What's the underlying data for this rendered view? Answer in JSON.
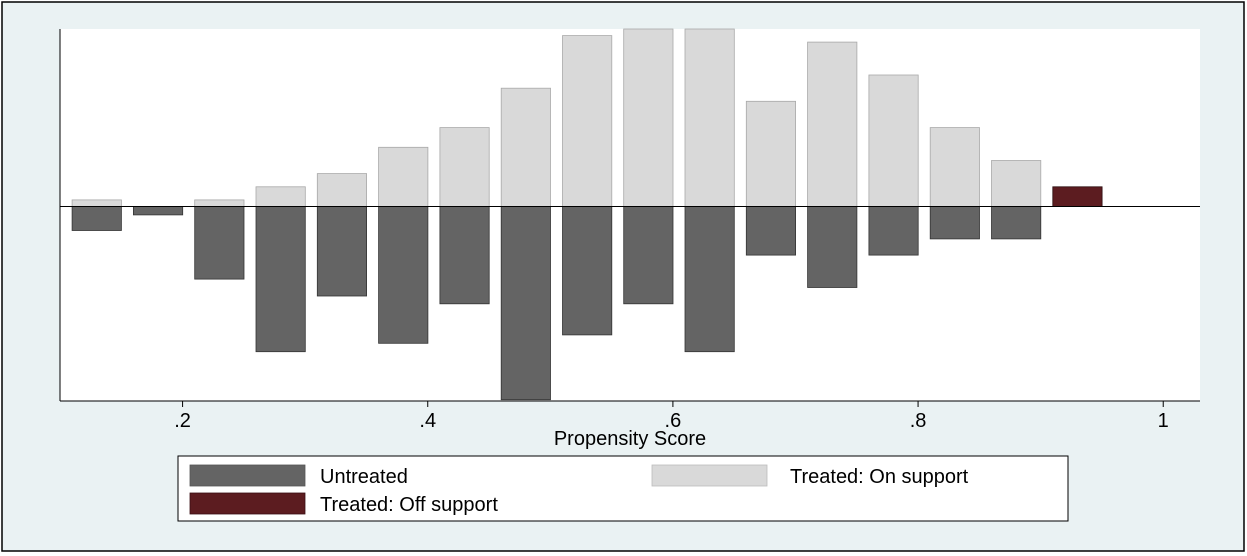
{
  "chart_data": {
    "type": "bar",
    "subtype": "mirrored-histogram",
    "xlabel": "Propensity Score",
    "ylabel": "",
    "title": "",
    "xlim": [
      0.1,
      1.03
    ],
    "ylim": [
      -30,
      27
    ],
    "x_ticks": [
      {
        "value": 0.2,
        "label": ".2"
      },
      {
        "value": 0.4,
        "label": ".4"
      },
      {
        "value": 0.6,
        "label": ".6"
      },
      {
        "value": 0.8,
        "label": ".8"
      },
      {
        "value": 1.0,
        "label": "1"
      }
    ],
    "bin_width": 0.05,
    "y_tick_labels_shown": false,
    "legend_position": "bottom",
    "series": [
      {
        "name": "Untreated",
        "color": "#646464",
        "direction": "below",
        "x": [
          0.13,
          0.18,
          0.23,
          0.28,
          0.33,
          0.38,
          0.43,
          0.48,
          0.53,
          0.58,
          0.63,
          0.68,
          0.73,
          0.78,
          0.83,
          0.88
        ],
        "values": [
          3.7,
          1.3,
          11.2,
          22.4,
          13.8,
          21.1,
          15.0,
          29.8,
          19.8,
          15.0,
          22.4,
          7.5,
          12.5,
          7.5,
          5.0,
          5.0
        ]
      },
      {
        "name": "Treated: On support",
        "color": "#d9d9d9",
        "direction": "above",
        "x": [
          0.13,
          0.18,
          0.23,
          0.28,
          0.33,
          0.38,
          0.43,
          0.48,
          0.53,
          0.58,
          0.63,
          0.68,
          0.73,
          0.78,
          0.83,
          0.88
        ],
        "values": [
          1.0,
          0,
          1.0,
          3.0,
          5.0,
          9.0,
          12.0,
          18.0,
          26.0,
          27.0,
          27.0,
          16.0,
          25.0,
          20.0,
          12.0,
          7.0
        ]
      },
      {
        "name": "Treated: Off support",
        "color": "#5c1c20",
        "direction": "above",
        "x": [
          0.93
        ],
        "values": [
          3.0
        ]
      }
    ],
    "legend": {
      "items": [
        {
          "label": "Untreated",
          "color": "#646464"
        },
        {
          "label": "Treated: On support",
          "color": "#d9d9d9"
        },
        {
          "label": "Treated: Off support",
          "color": "#5c1c20"
        }
      ]
    }
  }
}
